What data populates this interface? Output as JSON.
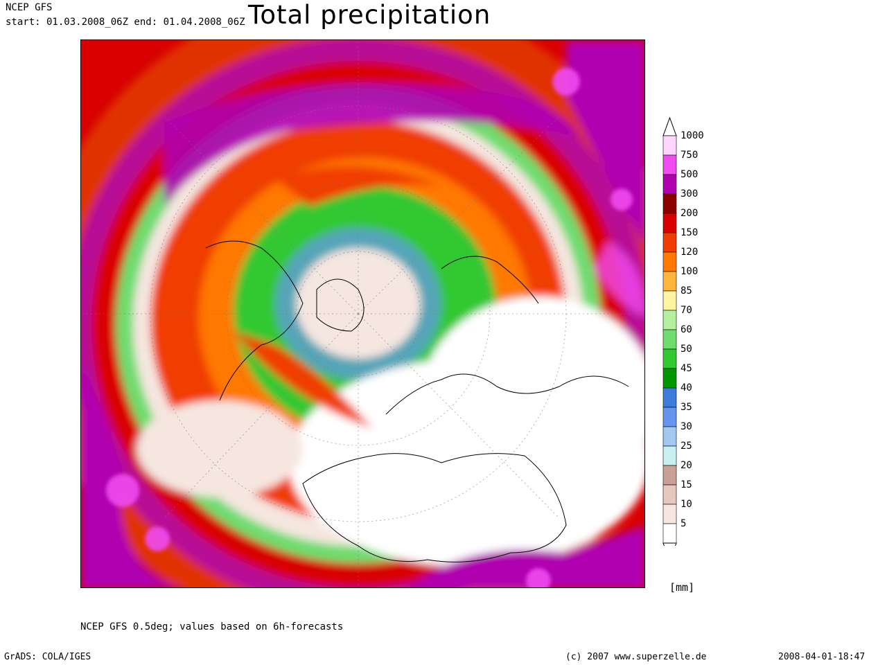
{
  "header": {
    "model": "NCEP GFS",
    "period": "start: 01.03.2008_06Z end: 01.04.2008_06Z",
    "title": "Total precipitation"
  },
  "legend": {
    "unit": "[mm]",
    "classes": [
      {
        "label": "1000",
        "color": "#ffd6ff"
      },
      {
        "label": "750",
        "color": "#f04cf0"
      },
      {
        "label": "500",
        "color": "#b000b0"
      },
      {
        "label": "300",
        "color": "#8c0000"
      },
      {
        "label": "200",
        "color": "#d80000"
      },
      {
        "label": "150",
        "color": "#f03c00"
      },
      {
        "label": "120",
        "color": "#ff7800"
      },
      {
        "label": "100",
        "color": "#ffb43c"
      },
      {
        "label": "85",
        "color": "#fff5a0"
      },
      {
        "label": "70",
        "color": "#b4f0a0"
      },
      {
        "label": "60",
        "color": "#6edc6e"
      },
      {
        "label": "50",
        "color": "#32c832"
      },
      {
        "label": "45",
        "color": "#009600"
      },
      {
        "label": "40",
        "color": "#3c7ddc"
      },
      {
        "label": "35",
        "color": "#6496f0"
      },
      {
        "label": "30",
        "color": "#a0c8f0"
      },
      {
        "label": "25",
        "color": "#c8f0f0"
      },
      {
        "label": "20",
        "color": "#c8a096"
      },
      {
        "label": "15",
        "color": "#e6c8be"
      },
      {
        "label": "10",
        "color": "#f5e6e0"
      },
      {
        "label": "5",
        "color": "#ffffff"
      }
    ]
  },
  "footnote": "NCEP GFS 0.5deg; values based on 6h-forecasts",
  "footer": {
    "left": "GrADS: COLA/IGES",
    "credit": "(c) 2007 www.superzelle.de",
    "timestamp": "2008-04-01-18:47"
  }
}
